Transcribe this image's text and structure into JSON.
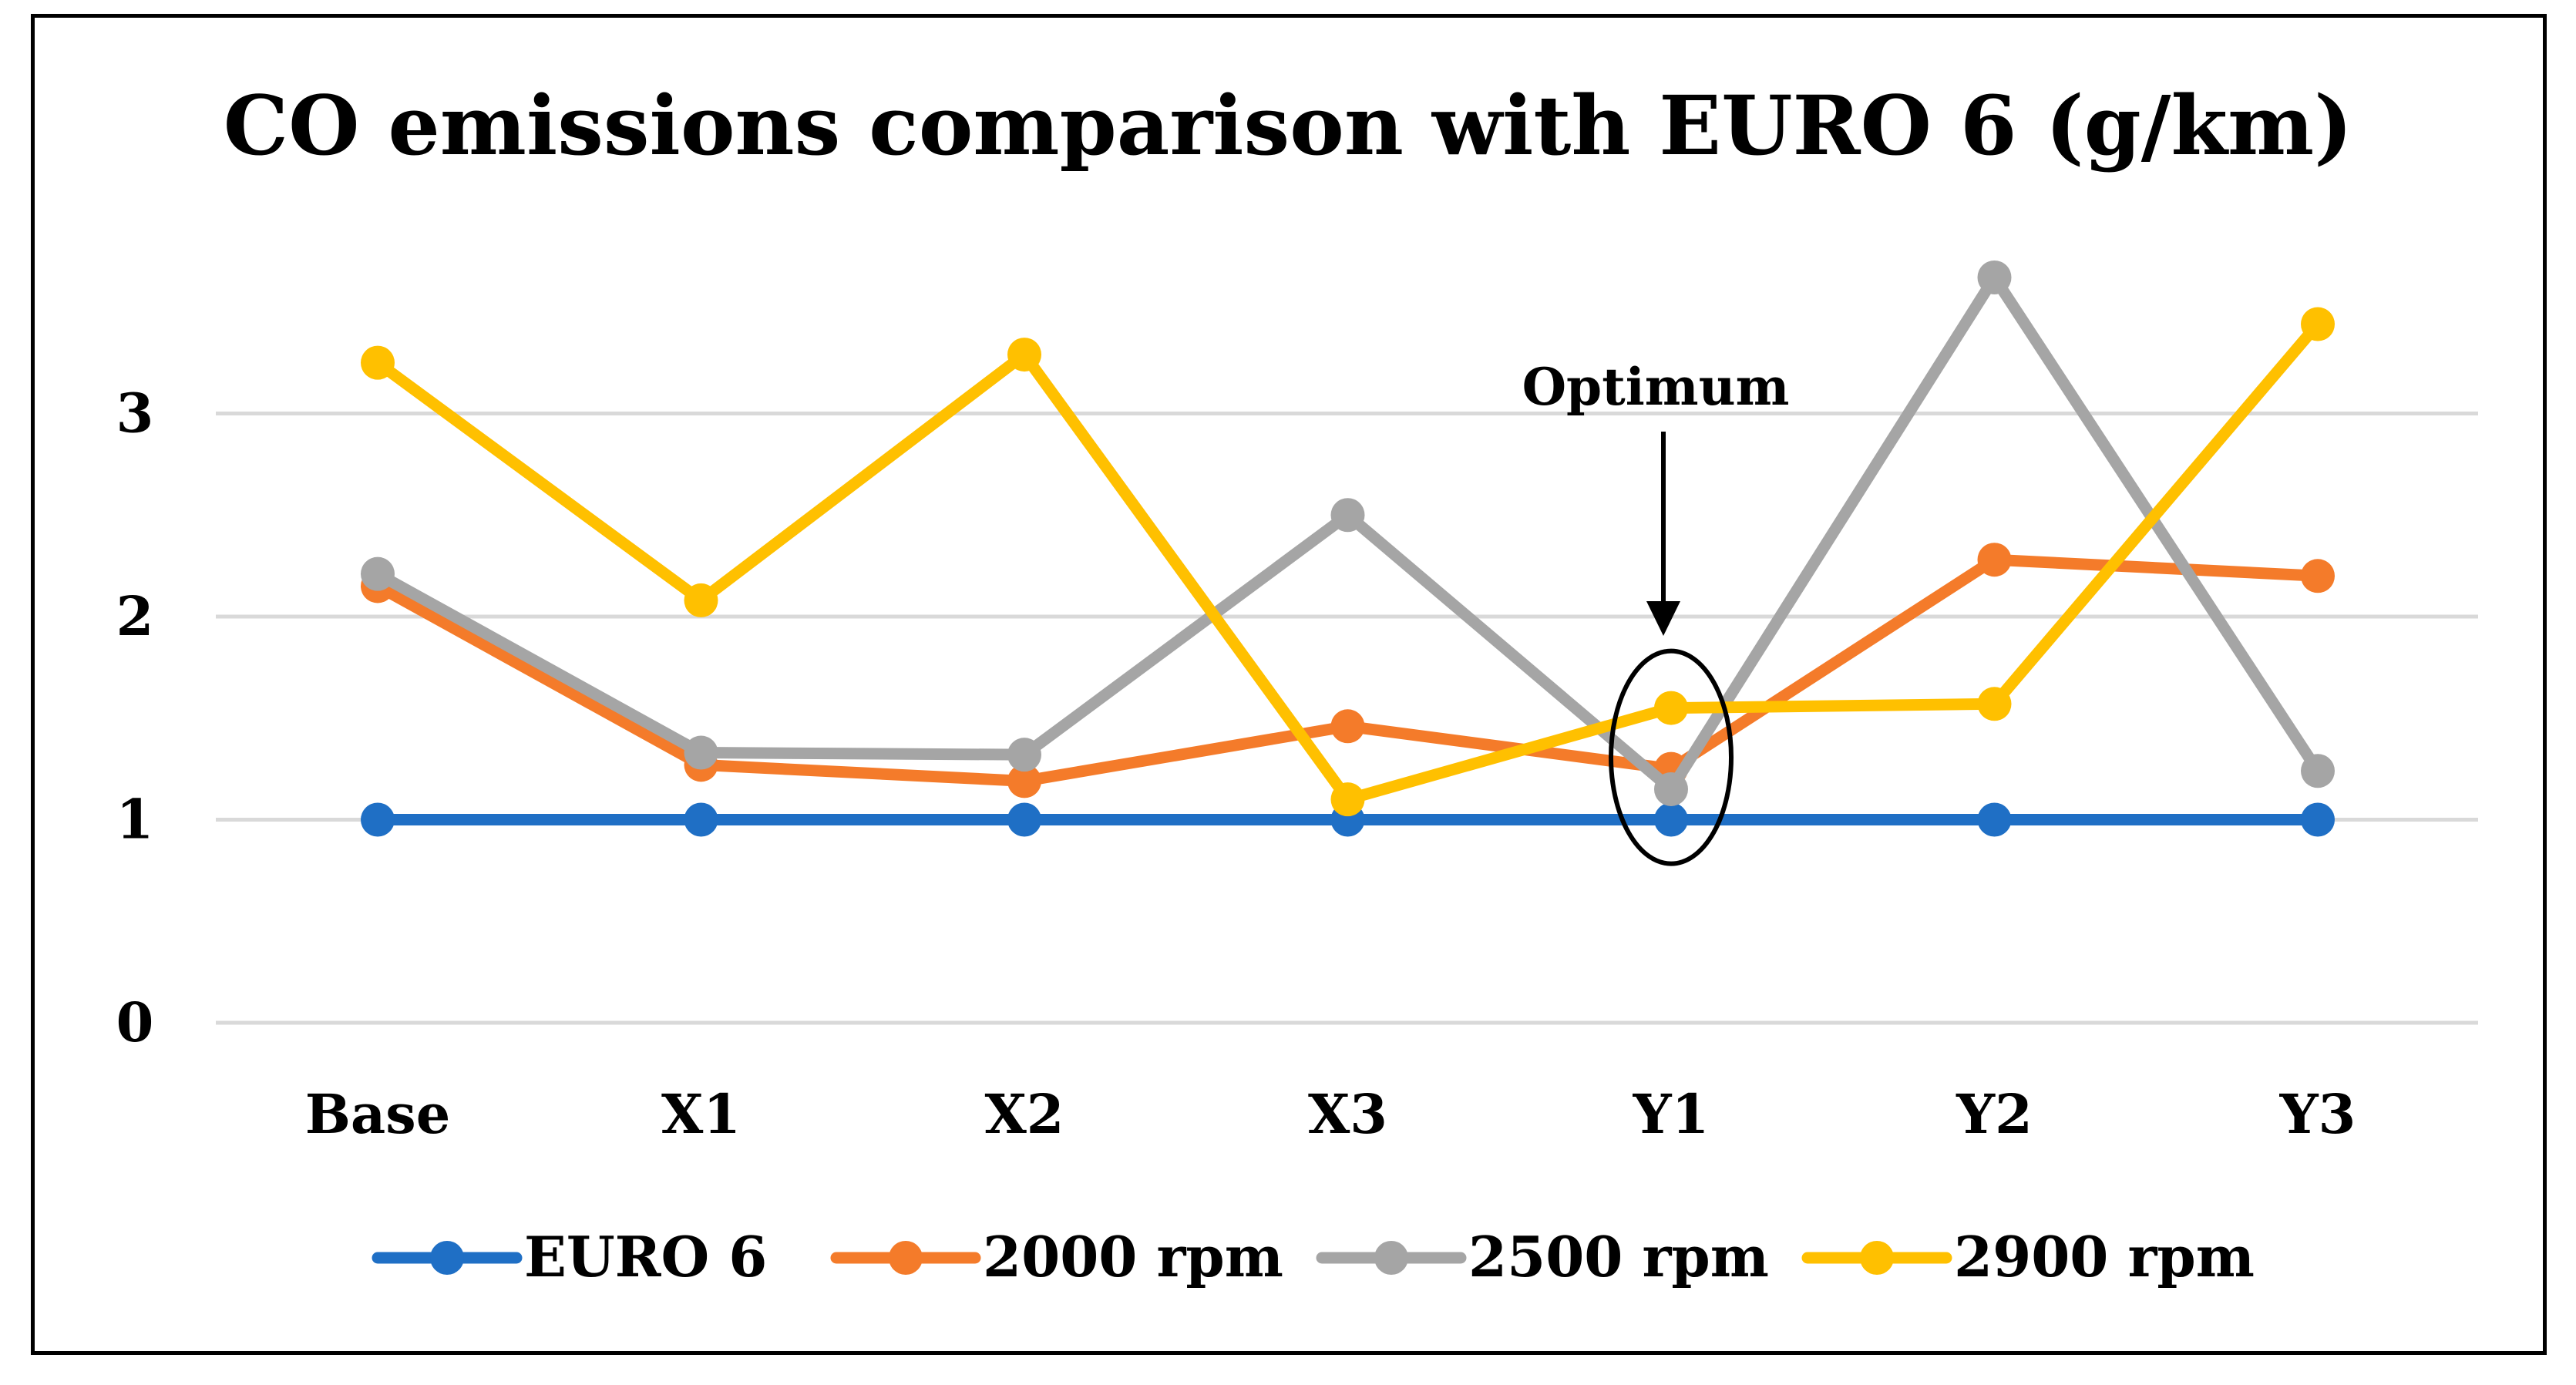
{
  "chart_data": {
    "type": "line",
    "title": "CO emissions comparison with EURO 6 (g/km)",
    "xlabel": "",
    "ylabel": "",
    "categories": [
      "Base",
      "X1",
      "X2",
      "X3",
      "Y1",
      "Y2",
      "Y3"
    ],
    "ylim": [
      0,
      4
    ],
    "yticks": [
      "0",
      "1",
      "2",
      "3"
    ],
    "ytick_values": [
      0,
      1,
      2,
      3
    ],
    "grid": true,
    "legend_position": "bottom",
    "series": [
      {
        "name": "EURO 6",
        "color": "#1f6fc5",
        "values": [
          1,
          1,
          1,
          1,
          1,
          1,
          1
        ]
      },
      {
        "name": "2000 rpm",
        "color": "#f47b2a",
        "values": [
          2.15,
          1.27,
          1.19,
          1.46,
          1.25,
          2.28,
          2.2
        ]
      },
      {
        "name": "2500 rpm",
        "color": "#a5a5a5",
        "values": [
          2.21,
          1.33,
          1.32,
          2.5,
          1.15,
          3.67,
          1.24
        ]
      },
      {
        "name": "2900 rpm",
        "color": "#ffc000",
        "values": [
          3.25,
          2.08,
          3.29,
          1.1,
          1.55,
          1.57,
          3.44
        ]
      }
    ],
    "annotation": {
      "text": "Optimum",
      "target_category": "Y1",
      "target_value": 1.25
    }
  }
}
